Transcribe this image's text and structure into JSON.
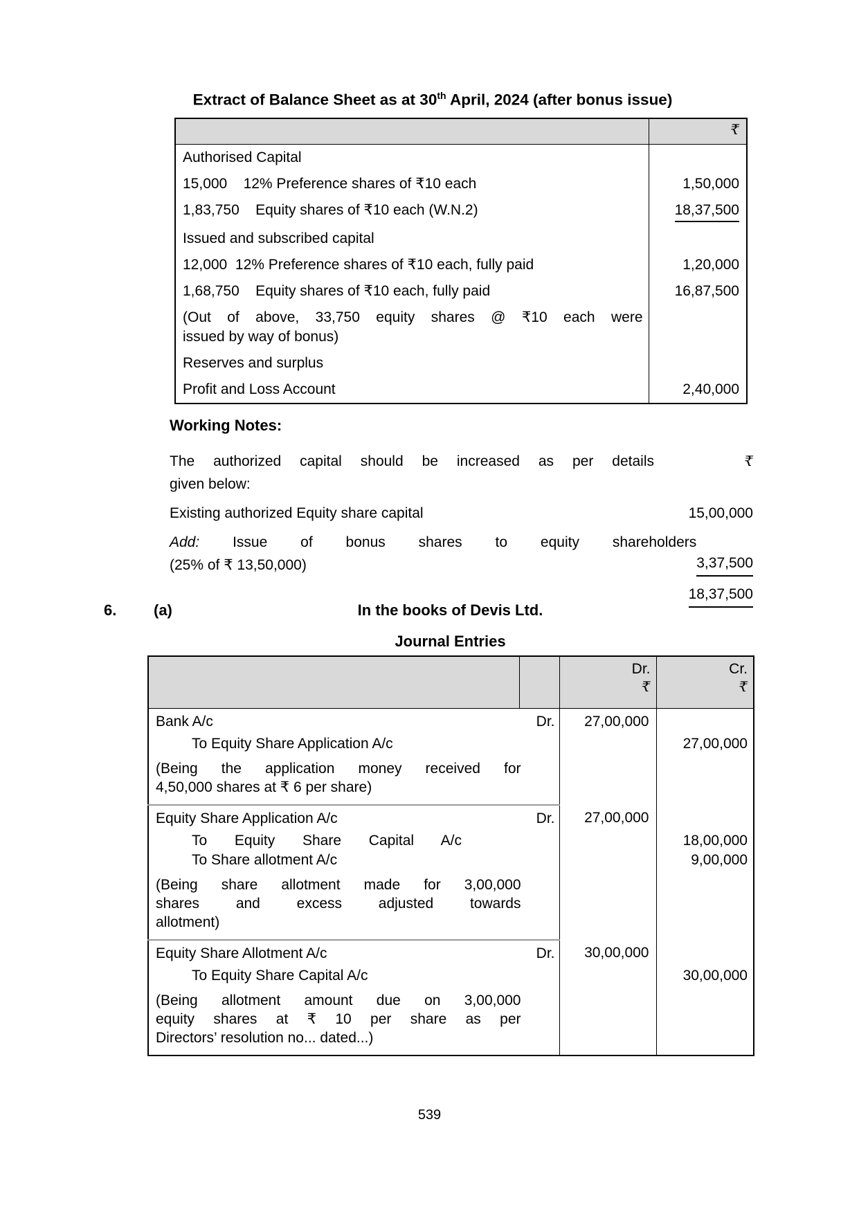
{
  "page": {
    "number": "539"
  },
  "balance_sheet": {
    "title": {
      "prefix": "Extract of Balance Sheet as at 30",
      "sup": "th",
      "suffix": " April, 2024 (after bonus issue)"
    },
    "header": {
      "currency": "₹"
    },
    "rows": [
      {
        "label": "Authorised Capital",
        "amount": ""
      },
      {
        "label": "15,000    12% Preference shares of ₹10 each",
        "amount": "1,50,000"
      },
      {
        "label": "1,83,750    Equity shares of ₹10 each (W.N.2)",
        "amount": "18,37,500"
      },
      {
        "label": "Issued and subscribed capital",
        "amount": ""
      },
      {
        "label": "12,000  12% Preference shares of ₹10 each, fully paid",
        "amount": "1,20,000"
      },
      {
        "label": "1,68,750    Equity shares of ₹10 each, fully paid",
        "amount": "16,87,500"
      },
      {
        "lines": [
          "(Out of above, 33,750 equity shares @ ₹10 each were",
          "issued by way of bonus)"
        ],
        "amount": ""
      },
      {
        "label": "Reserves and surplus",
        "amount": ""
      },
      {
        "label": "Profit and Loss Account",
        "amount": "2,40,000"
      }
    ]
  },
  "working_notes": {
    "heading": "Working Notes:",
    "intro": {
      "line1": "The authorized capital should be increased as per details",
      "line2": "given below:",
      "currency": "₹"
    },
    "existing": {
      "label": "Existing authorized Equity share capital",
      "amount": "15,00,000"
    },
    "add": {
      "label": "Add:",
      "rest": "Issue of bonus shares to equity shareholders",
      "line2": "(25% of ₹ 13,50,000)",
      "amount": "3,37,500"
    },
    "total": "18,37,500"
  },
  "section": {
    "number": "6.",
    "part": "(a)",
    "book_title": "In the books of Devis Ltd.",
    "subtitle": "Journal Entries"
  },
  "journal": {
    "header": {
      "dr": "Dr.",
      "cr": "Cr.",
      "currency": "₹"
    },
    "entries": [
      {
        "debit": {
          "account": "Bank A/c",
          "dr": "Dr.",
          "amount": "27,00,000"
        },
        "credits": [
          {
            "account": "To Equity Share Application A/c",
            "amount": "27,00,000"
          }
        ],
        "narration_lines": [
          "(Being the application money received for",
          "4,50,000 shares at ₹ 6 per share)"
        ]
      },
      {
        "debit": {
          "account": "Equity Share Application A/c",
          "dr": "Dr.",
          "amount": "27,00,000"
        },
        "credits": [
          {
            "account": "To Equity Share Capital A/c",
            "amount": "18,00,000"
          },
          {
            "account": "To Share allotment A/c",
            "amount": "9,00,000"
          }
        ],
        "narration_lines": [
          "(Being share allotment made for 3,00,000",
          "shares and excess adjusted towards",
          "allotment)"
        ]
      },
      {
        "debit": {
          "account": "Equity Share Allotment A/c",
          "dr": "Dr.",
          "amount": "30,00,000"
        },
        "credits": [
          {
            "account": "To Equity Share Capital A/c",
            "amount": "30,00,000"
          }
        ],
        "narration_lines": [
          "(Being allotment amount due on 3,00,000",
          "equity shares at ₹ 10 per share as per",
          "Directors’ resolution no... dated...)"
        ]
      }
    ]
  }
}
